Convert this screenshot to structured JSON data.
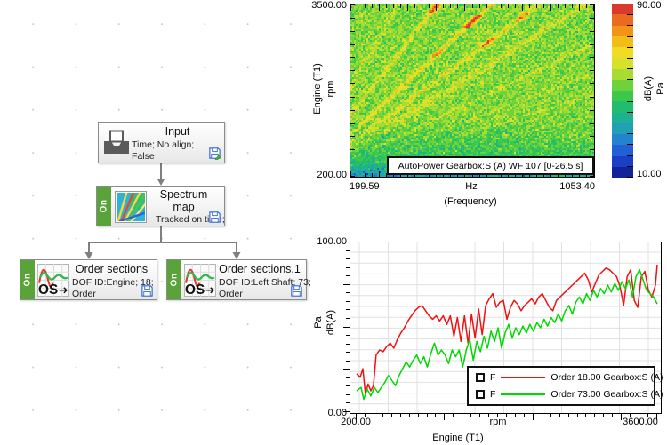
{
  "flowchart": {
    "nodes": {
      "input": {
        "title": "Input",
        "line1": "Time; No align;",
        "line2": "False"
      },
      "spectrum_map": {
        "state": "On",
        "title_line1": "Spectrum",
        "title_line2": "map",
        "subtitle": "Tracked on time;"
      },
      "order_sections": {
        "state": "On",
        "title": "Order sections",
        "line1": "DOF ID:Engine; 18;",
        "line2": "Order"
      },
      "order_sections_1": {
        "state": "On",
        "title": "Order sections.1",
        "line1": "DOF ID:Left Shaft; 73;",
        "line2": "Order"
      }
    }
  },
  "spectrogram": {
    "y_max_label": "3500.00",
    "y_min_label": "200.00",
    "y_name": "Engine (T1)",
    "y_unit": "rpm",
    "x_min_label": "199.59",
    "x_unit": "Hz",
    "x_max_label": "1053.40",
    "x_name": "(Frequency)",
    "annotation": "AutoPower Gearbox:S (A) WF 107 [0-26.5 s]",
    "colorbar": {
      "max_label": "90.00",
      "min_label": "10.00",
      "unit1": "dB(A)",
      "unit2": "Pa"
    }
  },
  "line_chart": {
    "y_max_label": "100.00",
    "y_min_label": "0.00",
    "y_unit1": "Pa",
    "y_unit2": "dB(A)",
    "x_min_label": "200.00",
    "x_unit": "rpm",
    "x_max_label": "3600.00",
    "x_name": "Engine (T1)",
    "legend": [
      {
        "flag": "F",
        "label": "Order 18.00 Gearbox:S (A)",
        "color": "#f01010"
      },
      {
        "flag": "F",
        "label": "Order 73.00 Gearbox:S (A)",
        "color": "#00d800"
      }
    ]
  },
  "chart_data": [
    {
      "type": "heatmap",
      "title": "AutoPower Gearbox:S (A) WF 107 [0-26.5 s]",
      "xlabel": "Hz (Frequency)",
      "ylabel": "Engine (T1) rpm",
      "value_label": "dB(A) Pa",
      "x_range": [
        199.59,
        1053.4
      ],
      "y_range": [
        200,
        3500
      ],
      "value_range": [
        10,
        90
      ],
      "base_level": 54,
      "noise_amplitude": 7,
      "seed": 42,
      "order_lines": [
        {
          "order": 6.2,
          "amp": 7,
          "width": 1.2
        },
        {
          "order": 8.6,
          "amp": 13,
          "width": 1.2
        },
        {
          "order": 11.8,
          "amp": 17,
          "width": 1.4
        },
        {
          "order": 14.7,
          "amp": 13,
          "width": 2.0
        },
        {
          "order": 17.5,
          "amp": 9,
          "width": 3.0
        },
        {
          "order": 23,
          "amp": 8,
          "width": 1.6
        },
        {
          "order": 29,
          "amp": 7,
          "width": 1.4
        },
        {
          "order": 36,
          "amp": 6,
          "width": 1.4
        },
        {
          "order": 47,
          "amp": 5,
          "width": 1.3
        },
        {
          "order": 60,
          "amp": 5,
          "width": 1.3
        }
      ],
      "hotspots": [
        {
          "order": 8.6,
          "rpm": [
            3330,
            3500
          ],
          "amp": 24
        },
        {
          "order": 11.8,
          "rpm": [
            3060,
            3320
          ],
          "amp": 24
        },
        {
          "order": 11.8,
          "rpm": [
            2520,
            2660
          ],
          "amp": 10
        },
        {
          "order": 14.7,
          "rpm": [
            2680,
            2870
          ],
          "amp": 20
        },
        {
          "order": 14.7,
          "rpm": [
            3180,
            3360
          ],
          "amp": 14
        }
      ],
      "colormap_top_to_bottom": [
        "#d93a2b",
        "#ea6a1f",
        "#f29516",
        "#f3bd18",
        "#f0dc24",
        "#d8e22a",
        "#a8dc32",
        "#6ed23c",
        "#3cc84a",
        "#22bc6e",
        "#1bb191",
        "#1fa0b4",
        "#2383cc",
        "#2260d6",
        "#1b3fc4",
        "#122298"
      ]
    },
    {
      "type": "line",
      "xlabel": "rpm Engine (T1)",
      "ylabel": "Pa dB(A)",
      "x_range": [
        200,
        3600
      ],
      "y_range": [
        0,
        100
      ],
      "grid": true,
      "legend_position": "bottom-right",
      "series": [
        {
          "name": "Order 18.00 Gearbox:S (A)",
          "color": "#f01010",
          "points": [
            [
              200,
              23
            ],
            [
              240,
              21
            ],
            [
              270,
              26
            ],
            [
              300,
              11
            ],
            [
              330,
              17
            ],
            [
              360,
              13
            ],
            [
              390,
              16
            ],
            [
              420,
              34
            ],
            [
              460,
              37
            ],
            [
              500,
              36
            ],
            [
              540,
              39
            ],
            [
              580,
              41
            ],
            [
              620,
              38
            ],
            [
              660,
              43
            ],
            [
              700,
              47
            ],
            [
              740,
              50
            ],
            [
              780,
              54
            ],
            [
              820,
              57
            ],
            [
              860,
              60
            ],
            [
              900,
              62
            ],
            [
              940,
              63
            ],
            [
              980,
              60
            ],
            [
              1020,
              57
            ],
            [
              1060,
              55
            ],
            [
              1100,
              57
            ],
            [
              1140,
              54
            ],
            [
              1180,
              57
            ],
            [
              1220,
              52
            ],
            [
              1260,
              57
            ],
            [
              1300,
              45
            ],
            [
              1340,
              56
            ],
            [
              1380,
              42
            ],
            [
              1420,
              57
            ],
            [
              1460,
              41
            ],
            [
              1500,
              58
            ],
            [
              1540,
              44
            ],
            [
              1580,
              61
            ],
            [
              1620,
              46
            ],
            [
              1660,
              63
            ],
            [
              1700,
              67
            ],
            [
              1740,
              70
            ],
            [
              1780,
              62
            ],
            [
              1820,
              65
            ],
            [
              1860,
              66
            ],
            [
              1900,
              55
            ],
            [
              1940,
              62
            ],
            [
              1980,
              66
            ],
            [
              2020,
              64
            ],
            [
              2060,
              60
            ],
            [
              2100,
              63
            ],
            [
              2140,
              65
            ],
            [
              2180,
              67
            ],
            [
              2220,
              64
            ],
            [
              2260,
              68
            ],
            [
              2300,
              70
            ],
            [
              2340,
              66
            ],
            [
              2380,
              62
            ],
            [
              2420,
              60
            ],
            [
              2460,
              66
            ],
            [
              2500,
              68
            ],
            [
              2540,
              70
            ],
            [
              2580,
              72
            ],
            [
              2620,
              74
            ],
            [
              2660,
              76
            ],
            [
              2700,
              78
            ],
            [
              2740,
              80
            ],
            [
              2780,
              82
            ],
            [
              2820,
              78
            ],
            [
              2860,
              71
            ],
            [
              2900,
              76
            ],
            [
              2940,
              81
            ],
            [
              2980,
              83
            ],
            [
              3020,
              85
            ],
            [
              3060,
              84
            ],
            [
              3100,
              82
            ],
            [
              3140,
              80
            ],
            [
              3180,
              74
            ],
            [
              3220,
              63
            ],
            [
              3260,
              80
            ],
            [
              3300,
              84
            ],
            [
              3340,
              66
            ],
            [
              3380,
              62
            ],
            [
              3420,
              80
            ],
            [
              3460,
              83
            ],
            [
              3500,
              72
            ],
            [
              3540,
              68
            ],
            [
              3580,
              75
            ],
            [
              3600,
              87
            ]
          ]
        },
        {
          "name": "Order 73.00 Gearbox:S (A)",
          "color": "#00d800",
          "points": [
            [
              200,
              13
            ],
            [
              250,
              15
            ],
            [
              280,
              8
            ],
            [
              320,
              14
            ],
            [
              360,
              10
            ],
            [
              400,
              15
            ],
            [
              440,
              12
            ],
            [
              480,
              15
            ],
            [
              520,
              18
            ],
            [
              560,
              22
            ],
            [
              600,
              19
            ],
            [
              640,
              16
            ],
            [
              680,
              22
            ],
            [
              720,
              26
            ],
            [
              760,
              30
            ],
            [
              800,
              27
            ],
            [
              840,
              31
            ],
            [
              880,
              34
            ],
            [
              920,
              29
            ],
            [
              960,
              33
            ],
            [
              1000,
              27
            ],
            [
              1040,
              35
            ],
            [
              1080,
              41
            ],
            [
              1120,
              34
            ],
            [
              1160,
              37
            ],
            [
              1200,
              34
            ],
            [
              1240,
              29
            ],
            [
              1280,
              37
            ],
            [
              1320,
              33
            ],
            [
              1360,
              37
            ],
            [
              1400,
              27
            ],
            [
              1440,
              37
            ],
            [
              1480,
              43
            ],
            [
              1520,
              31
            ],
            [
              1560,
              42
            ],
            [
              1600,
              36
            ],
            [
              1640,
              45
            ],
            [
              1680,
              38
            ],
            [
              1720,
              48
            ],
            [
              1760,
              42
            ],
            [
              1800,
              50
            ],
            [
              1840,
              38
            ],
            [
              1880,
              47
            ],
            [
              1920,
              52
            ],
            [
              1960,
              44
            ],
            [
              2000,
              50
            ],
            [
              2040,
              46
            ],
            [
              2080,
              51
            ],
            [
              2120,
              47
            ],
            [
              2160,
              52
            ],
            [
              2200,
              48
            ],
            [
              2240,
              53
            ],
            [
              2280,
              50
            ],
            [
              2320,
              55
            ],
            [
              2360,
              51
            ],
            [
              2400,
              56
            ],
            [
              2440,
              53
            ],
            [
              2480,
              58
            ],
            [
              2520,
              54
            ],
            [
              2560,
              60
            ],
            [
              2600,
              63
            ],
            [
              2640,
              58
            ],
            [
              2680,
              65
            ],
            [
              2720,
              68
            ],
            [
              2760,
              64
            ],
            [
              2800,
              70
            ],
            [
              2840,
              66
            ],
            [
              2880,
              72
            ],
            [
              2920,
              68
            ],
            [
              2960,
              73
            ],
            [
              3000,
              70
            ],
            [
              3040,
              75
            ],
            [
              3080,
              71
            ],
            [
              3120,
              76
            ],
            [
              3160,
              72
            ],
            [
              3200,
              77
            ],
            [
              3240,
              73
            ],
            [
              3280,
              78
            ],
            [
              3320,
              68
            ],
            [
              3360,
              80
            ],
            [
              3400,
              84
            ],
            [
              3440,
              78
            ],
            [
              3480,
              72
            ],
            [
              3520,
              70
            ],
            [
              3560,
              68
            ],
            [
              3600,
              64
            ]
          ]
        }
      ]
    }
  ]
}
